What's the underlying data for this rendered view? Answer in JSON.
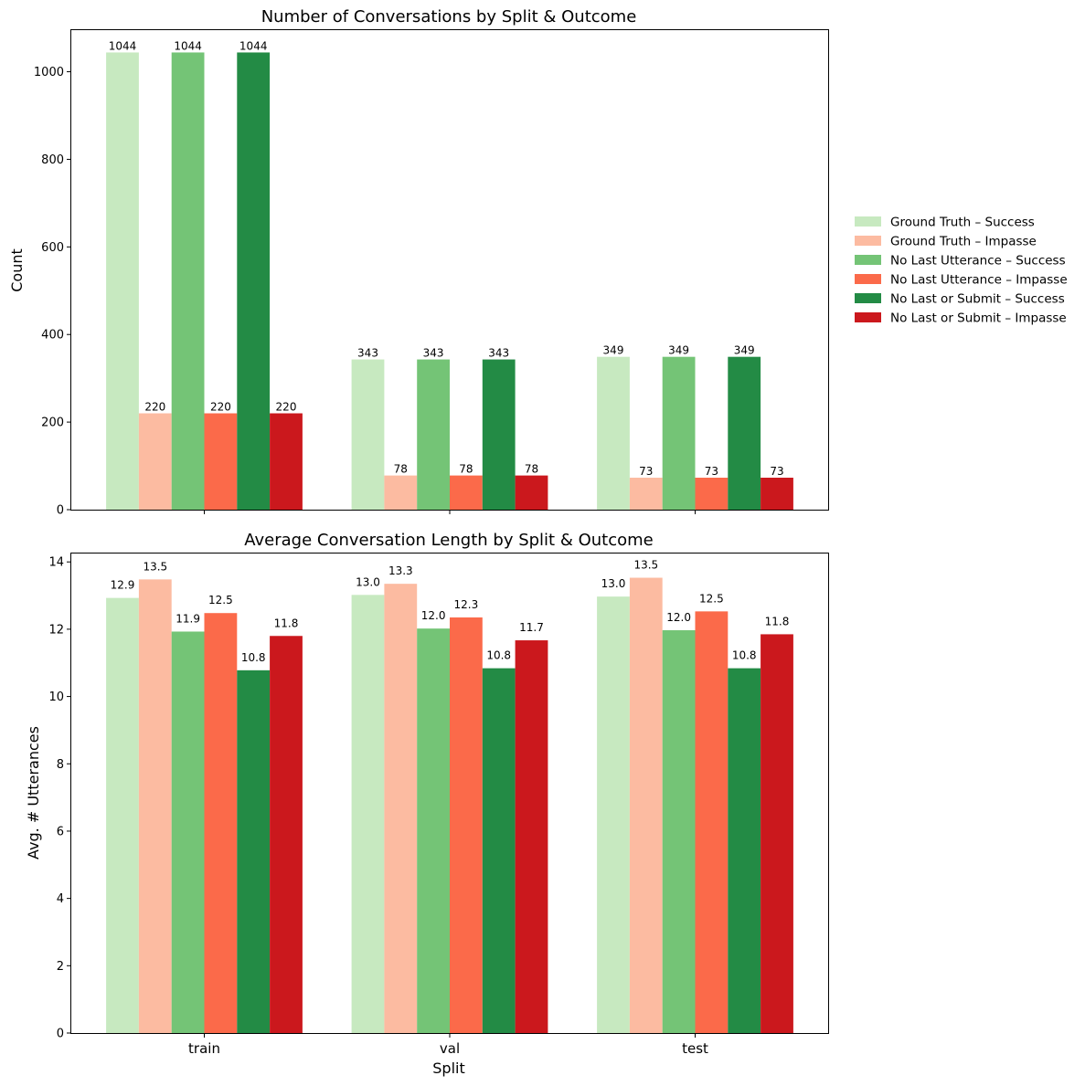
{
  "chart_data": [
    {
      "type": "bar",
      "title": "Number of Conversations by Split & Outcome",
      "xlabel": "",
      "ylabel": "Count",
      "ylim": [
        0,
        1095
      ],
      "yticks": [
        "0",
        "200",
        "400",
        "600",
        "800",
        "1000"
      ],
      "categories": [
        "train",
        "val",
        "test"
      ],
      "show_category_ticks": false,
      "series": [
        {
          "name": "Ground Truth – Success",
          "values": [
            1044,
            343,
            349
          ],
          "labels": [
            "1044",
            "343",
            "349"
          ]
        },
        {
          "name": "Ground Truth – Impasse",
          "values": [
            220,
            78,
            73
          ],
          "labels": [
            "220",
            "78",
            "73"
          ]
        },
        {
          "name": "No Last Utterance – Success",
          "values": [
            1044,
            343,
            349
          ],
          "labels": [
            "1044",
            "343",
            "349"
          ]
        },
        {
          "name": "No Last Utterance – Impasse",
          "values": [
            220,
            78,
            73
          ],
          "labels": [
            "220",
            "78",
            "73"
          ]
        },
        {
          "name": "No Last or Submit – Success",
          "values": [
            1044,
            343,
            349
          ],
          "labels": [
            "1044",
            "343",
            "349"
          ]
        },
        {
          "name": "No Last or Submit – Impasse",
          "values": [
            220,
            78,
            73
          ],
          "labels": [
            "220",
            "78",
            "73"
          ]
        }
      ]
    },
    {
      "type": "bar",
      "title": "Average Conversation Length by Split & Outcome",
      "xlabel": "Split",
      "ylabel": "Avg. # Utterances",
      "ylim": [
        0,
        14.25
      ],
      "yticks": [
        "0",
        "2",
        "4",
        "6",
        "8",
        "10",
        "12",
        "14"
      ],
      "categories": [
        "train",
        "val",
        "test"
      ],
      "show_category_ticks": true,
      "series": [
        {
          "name": "Ground Truth – Success",
          "values": [
            12.93,
            13.02,
            12.97
          ],
          "labels": [
            "12.9",
            "13.0",
            "13.0"
          ]
        },
        {
          "name": "Ground Truth – Impasse",
          "values": [
            13.48,
            13.35,
            13.53
          ],
          "labels": [
            "13.5",
            "13.3",
            "13.5"
          ]
        },
        {
          "name": "No Last Utterance – Success",
          "values": [
            11.93,
            12.02,
            11.97
          ],
          "labels": [
            "11.9",
            "12.0",
            "12.0"
          ]
        },
        {
          "name": "No Last Utterance – Impasse",
          "values": [
            12.48,
            12.35,
            12.53
          ],
          "labels": [
            "12.5",
            "12.3",
            "12.5"
          ]
        },
        {
          "name": "No Last or Submit – Success",
          "values": [
            10.78,
            10.84,
            10.84
          ],
          "labels": [
            "10.8",
            "10.8",
            "10.8"
          ]
        },
        {
          "name": "No Last or Submit – Impasse",
          "values": [
            11.8,
            11.67,
            11.85
          ],
          "labels": [
            "11.8",
            "11.7",
            "11.8"
          ]
        }
      ]
    }
  ],
  "legend": {
    "placement": "right",
    "items": [
      {
        "label": "Ground Truth – Success",
        "color": "#c7e9c0"
      },
      {
        "label": "Ground Truth – Impasse",
        "color": "#fcbba1"
      },
      {
        "label": "No Last Utterance – Success",
        "color": "#74c476"
      },
      {
        "label": "No Last Utterance – Impasse",
        "color": "#fb6a4a"
      },
      {
        "label": "No Last or Submit – Success",
        "color": "#238b45"
      },
      {
        "label": "No Last or Submit – Impasse",
        "color": "#cb181d"
      }
    ]
  }
}
